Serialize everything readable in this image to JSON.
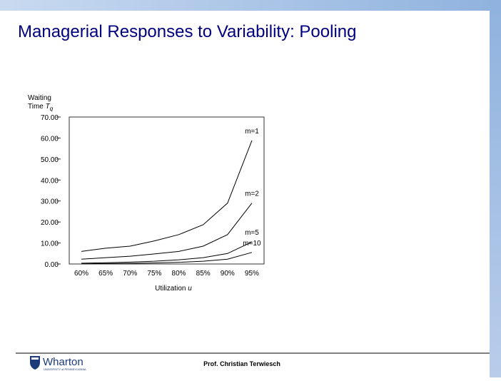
{
  "slide": {
    "title": "Managerial Responses to Variability: Pooling",
    "footer": "Prof. Christian Terwiesch",
    "logo": "Wharton",
    "logo_sub": "UNIVERSITY of PENNSYLVANIA"
  },
  "chart_data": {
    "type": "line",
    "ylabel": {
      "line1": "Waiting",
      "line2": "Time",
      "var": "T",
      "sub": "q"
    },
    "xlabel": {
      "text": "Utilization",
      "var": "u"
    },
    "categories": [
      "60%",
      "65%",
      "70%",
      "75%",
      "80%",
      "85%",
      "90%",
      "95%"
    ],
    "series": [
      {
        "name": "m=1",
        "color": "#000000",
        "values": [
          6,
          7.5,
          8.5,
          11,
          14,
          18.7,
          29,
          58.8
        ]
      },
      {
        "name": "m=2",
        "color": "#000000",
        "values": [
          2.3,
          3,
          3.7,
          4.8,
          6,
          8.5,
          14,
          29
        ]
      },
      {
        "name": "m=5",
        "color": "#000000",
        "values": [
          0.4,
          0.6,
          0.9,
          1.3,
          2,
          3,
          5,
          10.5
        ]
      },
      {
        "name": "m=10",
        "color": "#000000",
        "values": [
          0.1,
          0.2,
          0.3,
          0.5,
          0.8,
          1.3,
          2.3,
          5.5
        ]
      }
    ],
    "ylim": [
      0,
      70
    ],
    "yticks": [
      {
        "value": 0,
        "label": "0.00"
      },
      {
        "value": 10,
        "label": "10.00"
      },
      {
        "value": 20,
        "label": "20.00"
      },
      {
        "value": 30,
        "label": "30.00"
      },
      {
        "value": 40,
        "label": "40.00"
      },
      {
        "value": 50,
        "label": "50.00"
      },
      {
        "value": 60,
        "label": "60.00"
      },
      {
        "value": 70,
        "label": "70.00"
      }
    ],
    "grid": false
  }
}
